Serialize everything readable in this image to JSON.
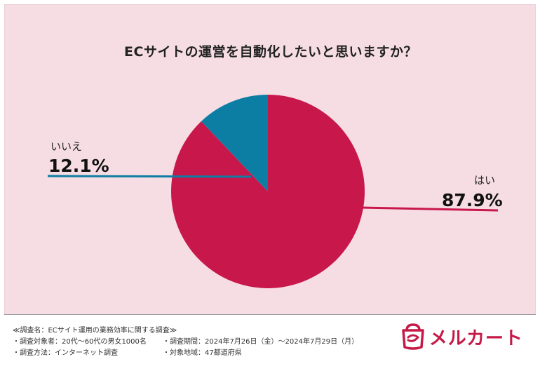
{
  "title": "ECサイトの運営を自動化したいと思いますか？",
  "chart_data": {
    "type": "pie",
    "title": "ECサイトの運営を自動化したいと思いますか？",
    "slices": [
      {
        "label": "はい",
        "value": 87.9,
        "value_label": "87.9%",
        "color": "#c8174a"
      },
      {
        "label": "いいえ",
        "value": 12.1,
        "value_label": "12.1%",
        "color": "#0d7ea3"
      }
    ]
  },
  "footer": {
    "survey_name": "≪調査名：ECサイト運用の業務効率に関する調査≫",
    "target": "・調査対象者：20代〜60代の男女1000名",
    "method": "・調査方法：インターネット調査",
    "period": "・調査期間：2024年7月26日（金）〜2024年7月29日（月）",
    "region": "・対象地域：47都道府県"
  },
  "brand": {
    "name": "メルカート",
    "color": "#c51a47"
  }
}
